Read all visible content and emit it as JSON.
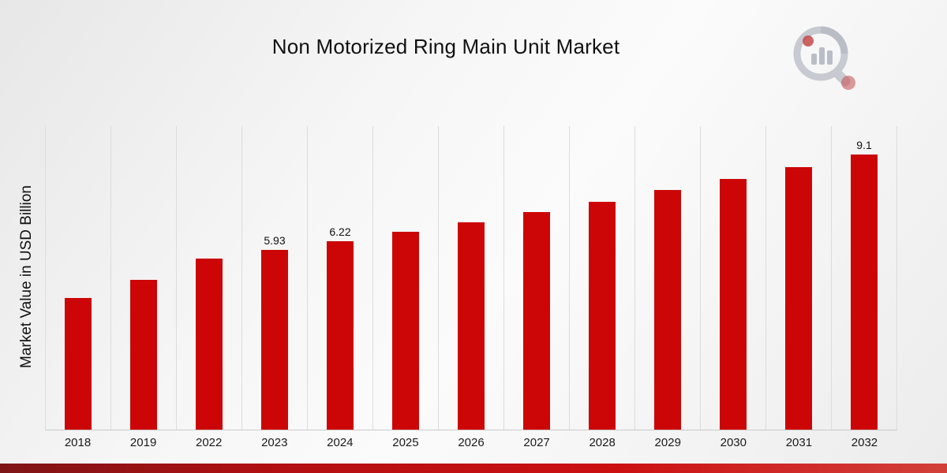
{
  "page": {
    "title": "Non Motorized Ring Main Unit Market"
  },
  "chart_data": {
    "type": "bar",
    "title": "Non Motorized Ring Main Unit Market",
    "xlabel": "",
    "ylabel": "Market Value in USD Billion",
    "bar_color": "#cc0606",
    "grid": "vertical",
    "legend": "none",
    "ylim": [
      0,
      10
    ],
    "categories": [
      "2018",
      "2019",
      "2022",
      "2023",
      "2024",
      "2025",
      "2026",
      "2027",
      "2028",
      "2029",
      "2030",
      "2031",
      "2032"
    ],
    "values": [
      4.35,
      4.95,
      5.65,
      5.93,
      6.22,
      6.53,
      6.85,
      7.19,
      7.52,
      7.92,
      8.28,
      8.68,
      9.1
    ],
    "data_labels": [
      "",
      "",
      "",
      "5.93",
      "6.22",
      "",
      "",
      "",
      "",
      "",
      "",
      "",
      "9.1"
    ]
  },
  "branding": {
    "logo_name": "market-research-logo"
  }
}
